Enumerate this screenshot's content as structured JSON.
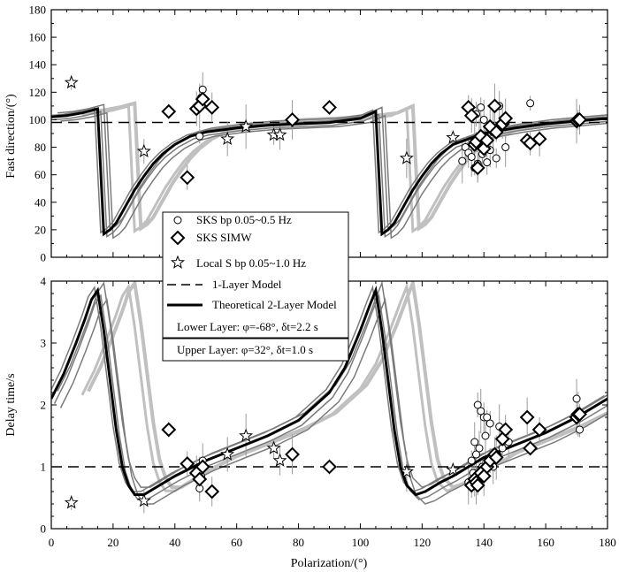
{
  "chart_data": [
    {
      "type": "scatter",
      "panel": "top",
      "xlabel": "",
      "ylabel": "Fast direction/(°)",
      "xlim": [
        0,
        180
      ],
      "ylim": [
        0,
        180
      ],
      "xticks": [
        0,
        20,
        40,
        60,
        80,
        100,
        120,
        140,
        160,
        180
      ],
      "yticks": [
        0,
        20,
        40,
        60,
        80,
        100,
        120,
        140,
        160,
        180
      ],
      "reference_line": {
        "name": "1-Layer Model",
        "y": 98
      },
      "series": [
        {
          "name": "Theoretical 2-Layer Model",
          "kind": "line",
          "x": [
            0,
            5,
            10,
            15,
            17,
            19,
            21,
            23,
            25,
            27,
            30,
            33,
            36,
            40,
            45,
            50,
            60,
            70,
            80,
            90,
            100,
            105,
            107,
            109,
            111,
            113,
            115,
            117,
            120,
            123,
            126,
            130,
            140,
            150,
            160,
            170,
            180
          ],
          "y": [
            102,
            103,
            105,
            108,
            17,
            20,
            25,
            33,
            41,
            49,
            59,
            68,
            75,
            82,
            88,
            91,
            94,
            96,
            97,
            98,
            101,
            106,
            17,
            20,
            25,
            33,
            41,
            49,
            59,
            68,
            75,
            82,
            90,
            94,
            97,
            99,
            101
          ]
        },
        {
          "name": "SKS bp 0.05~0.5 Hz",
          "kind": "circle",
          "x": [
            48,
            48.5,
            49,
            133,
            134,
            135,
            136,
            137,
            137.5,
            138,
            138.5,
            139,
            139.5,
            140,
            140.5,
            141,
            142,
            143,
            144,
            145,
            147,
            155
          ],
          "y": [
            88,
            116,
            122,
            70,
            80,
            76,
            73,
            65,
            104,
            68,
            84,
            109,
            75,
            100,
            87,
            69,
            78,
            91,
            72,
            110,
            80,
            112
          ]
        },
        {
          "name": "SKS  SIMW",
          "kind": "diamond",
          "x": [
            38,
            44,
            47,
            48,
            49,
            52,
            78,
            90,
            135,
            136,
            137,
            137.5,
            138,
            139,
            140,
            141,
            142,
            143.5,
            144,
            146,
            147,
            154,
            155,
            158,
            170,
            170.5,
            171
          ],
          "y": [
            106,
            58,
            108,
            110,
            115,
            109,
            100,
            109,
            109,
            103,
            82,
            84,
            65,
            88,
            79,
            85,
            95,
            110,
            91,
            97,
            101,
            85,
            83,
            86,
            99,
            100,
            100
          ]
        },
        {
          "name": "Local S  bp 0.05~1.0 Hz",
          "kind": "star",
          "x": [
            6.5,
            30,
            57,
            63,
            72,
            74,
            115,
            130
          ],
          "y": [
            127,
            77,
            86,
            95,
            89,
            89,
            72,
            87
          ]
        }
      ]
    },
    {
      "type": "scatter",
      "panel": "bottom",
      "xlabel": "Polarization/(°)",
      "ylabel": "Delay time/s",
      "xlim": [
        0,
        180
      ],
      "ylim": [
        0,
        4
      ],
      "xticks": [
        0,
        20,
        40,
        60,
        80,
        100,
        120,
        140,
        160,
        180
      ],
      "yticks": [
        0,
        1,
        2,
        3,
        4
      ],
      "reference_line": {
        "name": "1-Layer Model",
        "y": 1
      },
      "series": [
        {
          "name": "Theoretical 2-Layer Model",
          "kind": "line",
          "x": [
            0,
            4,
            8,
            11,
            13,
            15,
            17,
            19,
            21,
            23,
            25,
            27,
            30,
            35,
            40,
            50,
            60,
            70,
            80,
            90,
            95,
            100,
            103,
            105,
            107,
            109,
            111,
            113,
            115,
            118,
            121,
            126,
            130,
            140,
            150,
            160,
            170,
            180
          ],
          "y": [
            2.1,
            2.5,
            3.0,
            3.4,
            3.7,
            3.85,
            3.2,
            2.4,
            1.6,
            1.0,
            0.7,
            0.55,
            0.55,
            0.7,
            0.85,
            1.1,
            1.3,
            1.5,
            1.75,
            2.2,
            2.6,
            3.2,
            3.6,
            3.85,
            3.2,
            2.4,
            1.6,
            1.0,
            0.7,
            0.55,
            0.6,
            0.75,
            0.85,
            1.15,
            1.35,
            1.55,
            1.8,
            2.1
          ]
        },
        {
          "name": "SKS bp 0.05~0.5 Hz",
          "kind": "circle",
          "x": [
            48,
            48.5,
            49,
            135,
            136,
            136.5,
            137,
            137.5,
            138,
            138.5,
            139,
            139.5,
            140,
            140.5,
            141,
            142,
            143,
            145,
            146,
            148,
            170,
            171
          ],
          "y": [
            0.65,
            0.85,
            1.1,
            0.75,
            1.1,
            0.9,
            1.4,
            1.2,
            2.0,
            1.3,
            1.9,
            1.0,
            1.8,
            1.5,
            1.8,
            1.7,
            1.0,
            1.65,
            1.3,
            1.4,
            2.1,
            1.6
          ]
        },
        {
          "name": "SKS  SIMW",
          "kind": "diamond",
          "x": [
            38,
            44,
            47,
            48,
            49,
            52,
            78,
            90,
            136,
            137,
            137.5,
            138,
            139,
            140,
            141,
            142,
            143.5,
            144,
            146,
            147,
            154,
            155,
            158,
            170,
            170.5,
            171
          ],
          "y": [
            1.6,
            1.05,
            0.9,
            0.8,
            1.0,
            0.6,
            1.2,
            1.0,
            0.7,
            0.8,
            0.75,
            0.7,
            0.9,
            0.85,
            1.0,
            1.1,
            1.2,
            1.15,
            1.45,
            1.6,
            1.8,
            1.3,
            1.6,
            1.8,
            1.85,
            1.85
          ]
        },
        {
          "name": "Local S  bp 0.05~1.0 Hz",
          "kind": "star",
          "x": [
            6.5,
            30,
            57,
            63,
            72,
            74,
            115,
            130
          ],
          "y": [
            0.42,
            0.45,
            1.2,
            1.5,
            1.3,
            1.1,
            0.92,
            0.95
          ]
        }
      ]
    }
  ],
  "legend": {
    "placement": "center",
    "entries": [
      {
        "symbol": "circle",
        "label": "SKS   bp 0.05~0.5 Hz"
      },
      {
        "symbol": "diamond",
        "label": "SKS  SIMW"
      },
      {
        "symbol": "star",
        "label": "Local S  bp 0.05~1.0 Hz"
      },
      {
        "symbol": "dashed-line",
        "label": "1-Layer Model"
      },
      {
        "symbol": "solid-line",
        "label": "Theoretical 2-Layer Model"
      }
    ],
    "notes": [
      "Lower Layer: φ=-68°, δt=2.2 s",
      "Upper Layer: φ=32°, δt=1.0 s"
    ]
  },
  "colors": {
    "model_main": "#000000",
    "model_ensemble_dark": "#7a7a7a",
    "model_ensemble_light": "#c0c0c0",
    "error_bar": "#9a9a9a",
    "reference_line": "#000000"
  }
}
